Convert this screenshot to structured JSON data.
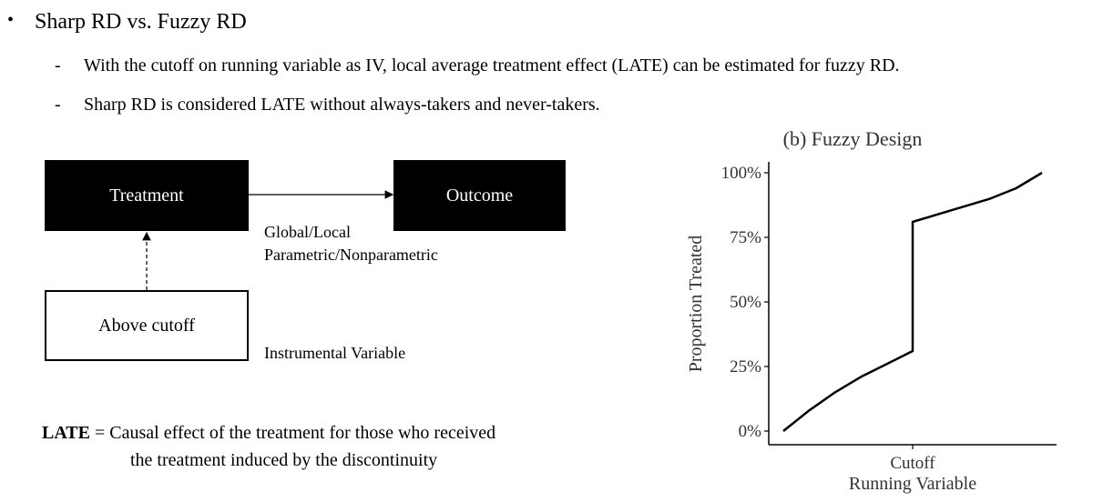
{
  "bullets": {
    "main_marker": "•",
    "main_text": "Sharp RD vs. Fuzzy RD",
    "sub_marker": "-",
    "sub_items": [
      "With the cutoff on running variable as IV, local average treatment effect (LATE) can be estimated for fuzzy RD.",
      "Sharp RD is considered LATE without always-takers and never-takers."
    ]
  },
  "diagram": {
    "treatment_label": "Treatment",
    "outcome_label": "Outcome",
    "instrument_box_label": "Above cutoff",
    "edge_label_line1": "Global/Local",
    "edge_label_line2": "Parametric/Nonparametric",
    "instrument_caption": "Instrumental Variable"
  },
  "definition": {
    "term": "LATE",
    "text_line1": " = Causal effect of the treatment for those who received",
    "text_line2": "the treatment induced by the discontinuity"
  },
  "chart_data": {
    "type": "line",
    "title": "(b) Fuzzy Design",
    "xlabel": "Running Variable",
    "ylabel": "Proportion Treated",
    "x_tick_labels": [
      "Cutoff"
    ],
    "y_tick_labels": [
      "0%",
      "25%",
      "50%",
      "75%",
      "100%"
    ],
    "y_ticks": [
      0,
      25,
      50,
      75,
      100
    ],
    "xlim": [
      0,
      1
    ],
    "ylim": [
      0,
      100
    ],
    "cutoff_x": 0.5,
    "grid": false,
    "series": [
      {
        "x": [
          0.0,
          0.1,
          0.2,
          0.3,
          0.4,
          0.5,
          0.5,
          0.6,
          0.7,
          0.8,
          0.9,
          1.0
        ],
        "values": [
          0,
          8,
          15,
          21,
          26,
          31,
          81,
          84,
          87,
          90,
          94,
          100
        ]
      }
    ]
  }
}
